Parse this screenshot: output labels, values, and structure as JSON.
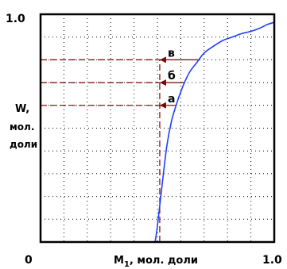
{
  "chart_data": {
    "type": "line",
    "title": "",
    "xlabel": {
      "main": "M",
      "subscript": "1",
      "rest": ", мол. доли"
    },
    "ylabel": {
      "line1": "W,",
      "line2": "мол.",
      "line3": "доли"
    },
    "xlim": [
      0,
      1.0
    ],
    "ylim": [
      0,
      1.0
    ],
    "x_tick_labels": {
      "min": "0",
      "max": "1.0"
    },
    "y_tick_labels": {
      "max": "1.0"
    },
    "grid": true,
    "grid_style": "dotted",
    "gridlines_x": [
      0.1,
      0.2,
      0.3,
      0.4,
      0.5,
      0.6,
      0.7,
      0.8,
      0.9
    ],
    "gridlines_y": [
      0.1,
      0.2,
      0.3,
      0.4,
      0.5,
      0.6,
      0.7,
      0.8,
      0.9
    ],
    "series": [
      {
        "color": "#1f3fff",
        "x": [
          0.49,
          0.5,
          0.52,
          0.54,
          0.56,
          0.58,
          0.6,
          0.62,
          0.64,
          0.67,
          0.7,
          0.74,
          0.78,
          0.82,
          0.86,
          0.9,
          0.94,
          0.97,
          1.0
        ],
        "y": [
          0.0,
          0.07,
          0.25,
          0.42,
          0.53,
          0.6,
          0.66,
          0.71,
          0.75,
          0.79,
          0.83,
          0.86,
          0.885,
          0.9,
          0.915,
          0.925,
          0.94,
          0.955,
          0.965
        ]
      }
    ],
    "reference_line": {
      "color": "#800000",
      "x": 0.51,
      "y_from": 0,
      "y_to": 0.8
    },
    "markers": [
      {
        "label": "а",
        "y": 0.6
      },
      {
        "label": "б",
        "y": 0.7
      },
      {
        "label": "в",
        "y": 0.8
      }
    ],
    "marker_color": "#800000"
  }
}
